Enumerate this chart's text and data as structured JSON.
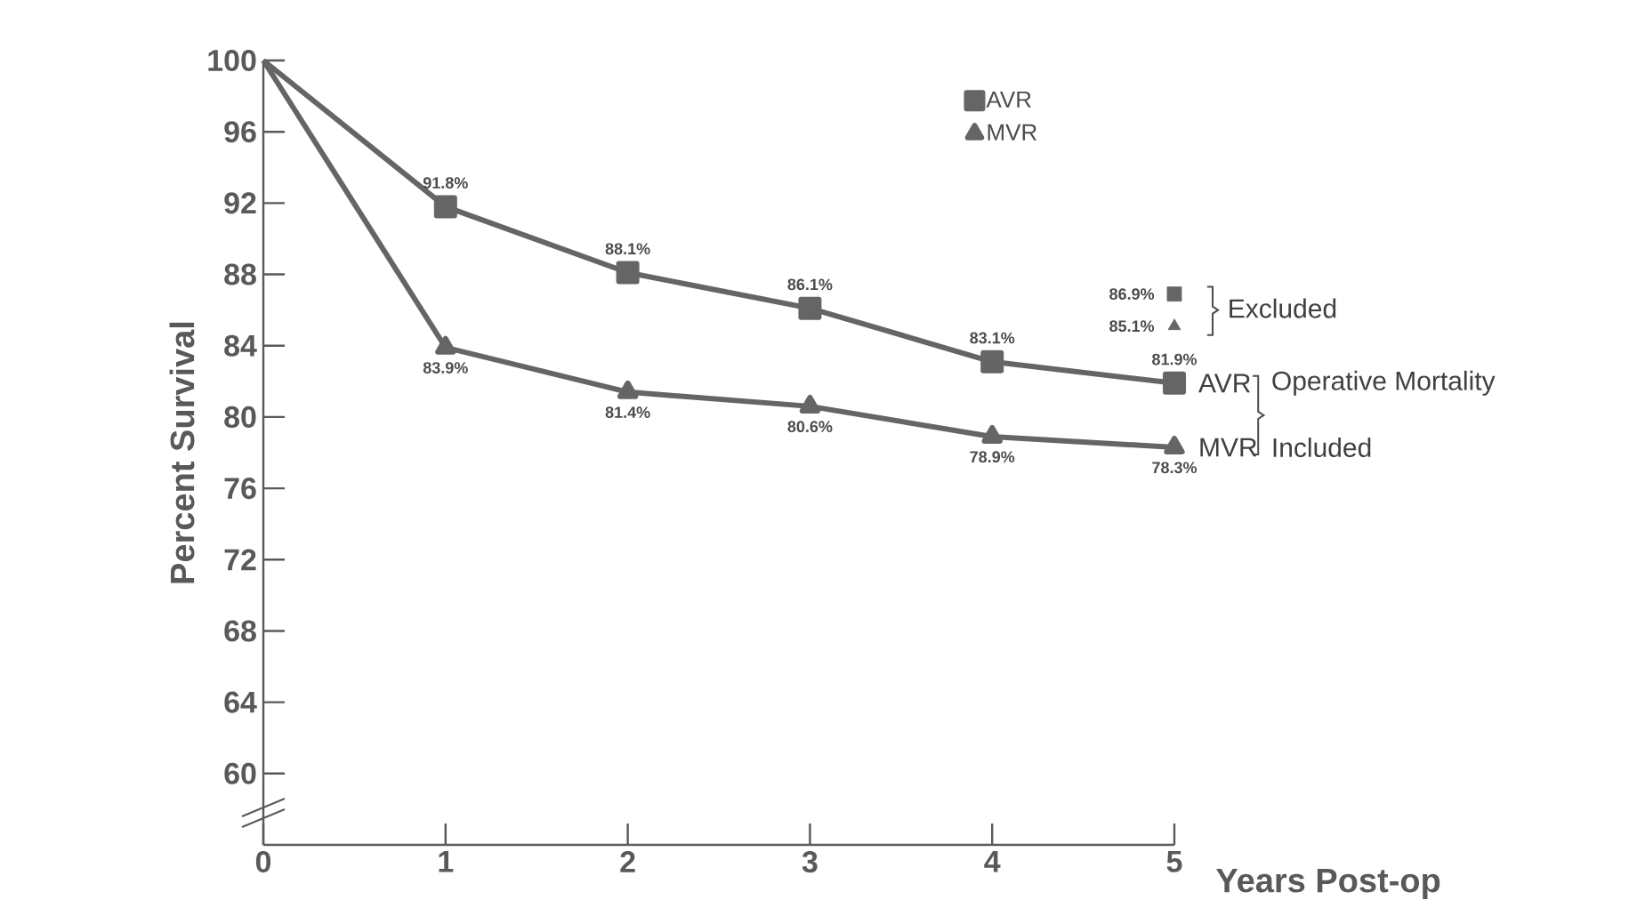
{
  "chart_data": {
    "type": "line",
    "xlabel": "Years Post-op",
    "ylabel": "Percent Survival",
    "x": [
      0,
      1,
      2,
      3,
      4,
      5
    ],
    "xlim": [
      0,
      5
    ],
    "xticks": [
      0,
      1,
      2,
      3,
      4,
      5
    ],
    "ylim": [
      56,
      100
    ],
    "yticks": [
      60,
      64,
      68,
      72,
      76,
      80,
      84,
      88,
      92,
      96,
      100
    ],
    "series": [
      {
        "name": "AVR",
        "color": "#656565",
        "marker": "square",
        "values": [
          100,
          91.8,
          88.1,
          86.1,
          83.1,
          81.9
        ],
        "value_labels": [
          null,
          "91.8%",
          "88.1%",
          "86.1%",
          "83.1%",
          "81.9%"
        ]
      },
      {
        "name": "MVR",
        "color": "#656565",
        "marker": "triangle",
        "values": [
          100,
          83.9,
          81.4,
          80.6,
          78.9,
          78.3
        ],
        "value_labels": [
          null,
          "83.9%",
          "81.4%",
          "80.6%",
          "78.9%",
          "78.3%"
        ]
      },
      {
        "type": "scatter",
        "color": "#656565",
        "marker": "square",
        "x": [
          5
        ],
        "values": [
          86.9
        ],
        "value_labels": [
          "86.9%"
        ]
      },
      {
        "type": "scatter",
        "color": "#656565",
        "marker": "triangle",
        "x": [
          5
        ],
        "values": [
          85.1
        ],
        "value_labels": [
          "85.1%"
        ]
      }
    ],
    "annotations": [
      "Excluded",
      "AVR",
      "MVR",
      "Operative Mortality",
      "Included"
    ],
    "legend": "top right",
    "grid": false
  }
}
